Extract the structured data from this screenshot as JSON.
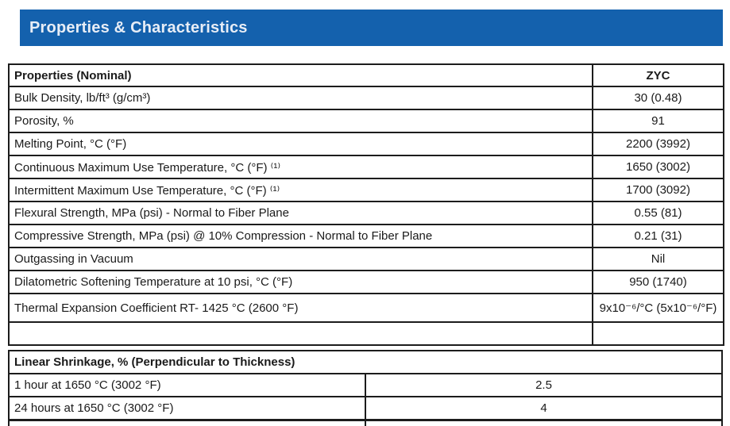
{
  "banner": {
    "title": "Properties & Characteristics",
    "bg_color": "#1461ad",
    "text_color": "#e7edf6"
  },
  "properties_table": {
    "header": {
      "name_col": "Properties (Nominal)",
      "value_col": "ZYC"
    },
    "rows": [
      {
        "property": "Bulk Density, lb/ft³ (g/cm³)",
        "value": "30 (0.48)"
      },
      {
        "property": "Porosity, %",
        "value": "91"
      },
      {
        "property": "Melting Point, °C (°F)",
        "value": "2200 (3992)"
      },
      {
        "property": "Continuous Maximum Use Temperature, °C (°F) ⁽¹⁾",
        "value": "1650 (3002)"
      },
      {
        "property": "Intermittent Maximum Use Temperature, °C (°F) ⁽¹⁾",
        "value": "1700 (3092)"
      },
      {
        "property": "Flexural Strength, MPa (psi) - Normal to Fiber Plane",
        "value": "0.55 (81)"
      },
      {
        "property": "Compressive Strength, MPa (psi) @ 10% Compression - Normal to Fiber Plane",
        "value": "0.21 (31)"
      },
      {
        "property": "Outgassing in Vacuum",
        "value": "Nil"
      },
      {
        "property": "Dilatometric Softening Temperature at 10 psi, °C (°F)",
        "value": "950 (1740)"
      },
      {
        "property": "Thermal Expansion Coefficient RT-  1425 °C (2600 °F)",
        "value": "9x10⁻⁶/°C (5x10⁻⁶/°F)"
      }
    ]
  },
  "shrinkage_table": {
    "section_header": "Linear Shrinkage, % (Perpendicular to Thickness)",
    "rows": [
      {
        "property": "1 hour at 1650 °C (3002 °F)",
        "value": "2.5"
      },
      {
        "property": "24 hours at 1650 °C (3002 °F)",
        "value": "4"
      }
    ]
  }
}
